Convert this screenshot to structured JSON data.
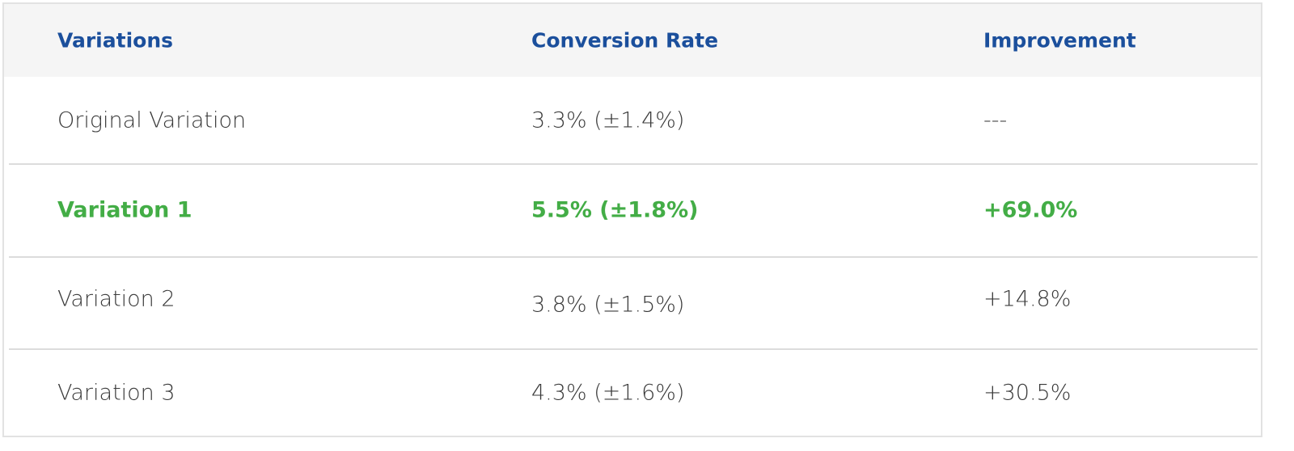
{
  "table": {
    "header": [
      "Variations",
      "Conversion Rate",
      "Improvement"
    ],
    "rows": [
      [
        "Original Variation",
        "3.3% (±1.4%)",
        "---"
      ],
      [
        "Variation 1",
        "5.5% (±1.8%)",
        "+69.0%"
      ],
      [
        "Variation 2",
        "3.8% (±1.5%)",
        "+14.8%"
      ],
      [
        "Variation 3",
        "4.3% (±1.6%)",
        "+30.5%"
      ]
    ]
  }
}
